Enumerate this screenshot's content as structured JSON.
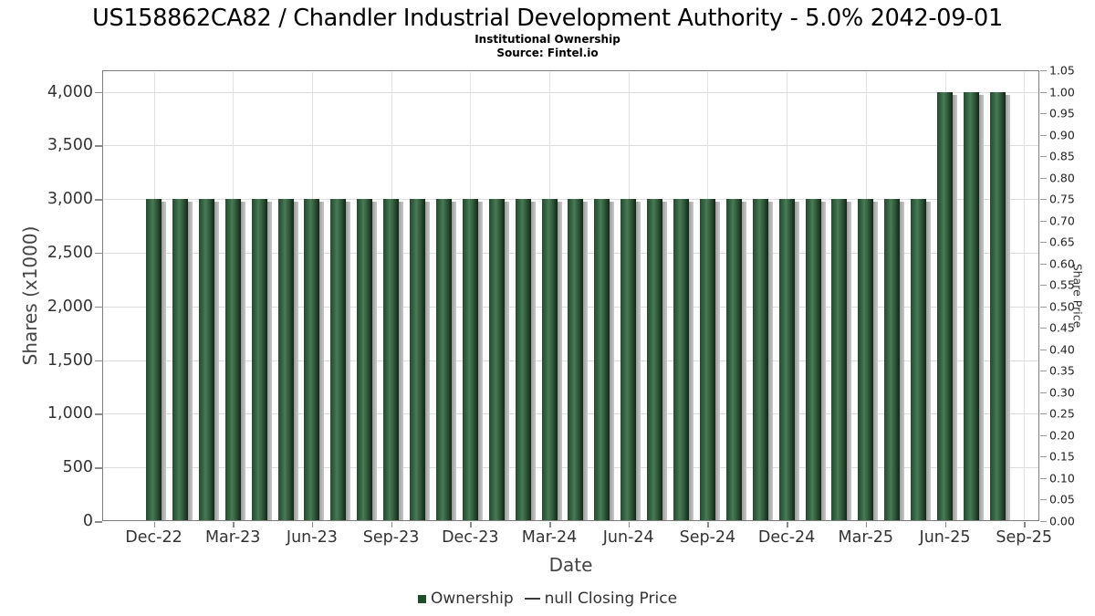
{
  "title": "US158862CA82 / Chandler Industrial Development Authority - 5.0% 2042-09-01",
  "subtitle": "Institutional Ownership",
  "source": "Source: Fintel.io",
  "colors": {
    "bar_green_dark": "#142c1a",
    "bar_green_mid": "#2d5638",
    "bar_green_light": "#4a7a58",
    "bar_shadow_gray": "#b5b5b5",
    "legend_square_green": "#214d2c",
    "gridline": "#dcdcdc",
    "axis_border": "#7d7d7d"
  },
  "axes": {
    "x": {
      "label": "Date",
      "tick_labels": [
        "Dec-22",
        "Mar-23",
        "Jun-23",
        "Sep-23",
        "Dec-23",
        "Mar-24",
        "Jun-24",
        "Sep-24",
        "Dec-24",
        "Mar-25",
        "Jun-25",
        "Sep-25"
      ],
      "tick_month_indices": [
        0,
        3,
        6,
        9,
        12,
        15,
        18,
        21,
        24,
        27,
        30,
        33
      ]
    },
    "y_left": {
      "label": "Shares (x1000)",
      "tick_labels": [
        "0",
        "500",
        "1,000",
        "1,500",
        "2,000",
        "2,500",
        "3,000",
        "3,500",
        "4,000"
      ],
      "tick_values": [
        0,
        500,
        1000,
        1500,
        2000,
        2500,
        3000,
        3500,
        4000
      ]
    },
    "y_right": {
      "label": "Share Price",
      "tick_labels": [
        "0.00",
        "0.05",
        "0.10",
        "0.15",
        "0.20",
        "0.25",
        "0.30",
        "0.35",
        "0.40",
        "0.45",
        "0.50",
        "0.55",
        "0.60",
        "0.65",
        "0.70",
        "0.75",
        "0.80",
        "0.85",
        "0.90",
        "0.95",
        "1.00",
        "1.05"
      ],
      "tick_values": [
        0,
        0.05,
        0.1,
        0.15,
        0.2,
        0.25,
        0.3,
        0.35,
        0.4,
        0.45,
        0.5,
        0.55,
        0.6,
        0.65,
        0.7,
        0.75,
        0.8,
        0.85,
        0.9,
        0.95,
        1.0,
        1.05
      ]
    }
  },
  "legend": [
    {
      "label": "Ownership",
      "marker": "square"
    },
    {
      "label": "null Closing Price",
      "marker": "line"
    }
  ],
  "chart_data": {
    "type": "bar",
    "title": "US158862CA82 / Chandler Industrial Development Authority - 5.0% 2042-09-01",
    "subtitle": "Institutional Ownership",
    "source": "Source: Fintel.io",
    "xlabel": "Date",
    "ylabel_left": "Shares (x1000)",
    "ylabel_right": "Share Price",
    "ylim_left": [
      0,
      4200
    ],
    "ylim_right": [
      0,
      1.05
    ],
    "grid": true,
    "legend_position": "bottom",
    "units_left": "thousands of shares",
    "x": [
      "Dec-22",
      "Jan-23",
      "Feb-23",
      "Mar-23",
      "Apr-23",
      "May-23",
      "Jun-23",
      "Jul-23",
      "Aug-23",
      "Sep-23",
      "Oct-23",
      "Nov-23",
      "Dec-23",
      "Jan-24",
      "Feb-24",
      "Mar-24",
      "Apr-24",
      "May-24",
      "Jun-24",
      "Jul-24",
      "Aug-24",
      "Sep-24",
      "Oct-24",
      "Nov-24",
      "Dec-24",
      "Jan-25",
      "Feb-25",
      "Mar-25",
      "Apr-25",
      "May-25",
      "Jun-25",
      "Jul-25",
      "Aug-25"
    ],
    "series": [
      {
        "name": "Ownership",
        "axis": "left",
        "values": [
          3000,
          3000,
          3000,
          3000,
          3000,
          3000,
          3000,
          3000,
          3000,
          3000,
          3000,
          3000,
          3000,
          3000,
          3000,
          3000,
          3000,
          3000,
          3000,
          3000,
          3000,
          3000,
          3000,
          3000,
          3000,
          3000,
          3000,
          3000,
          3000,
          3000,
          4000,
          4000,
          4000
        ]
      },
      {
        "name": "null Closing Price",
        "axis": "right",
        "values": []
      }
    ]
  }
}
